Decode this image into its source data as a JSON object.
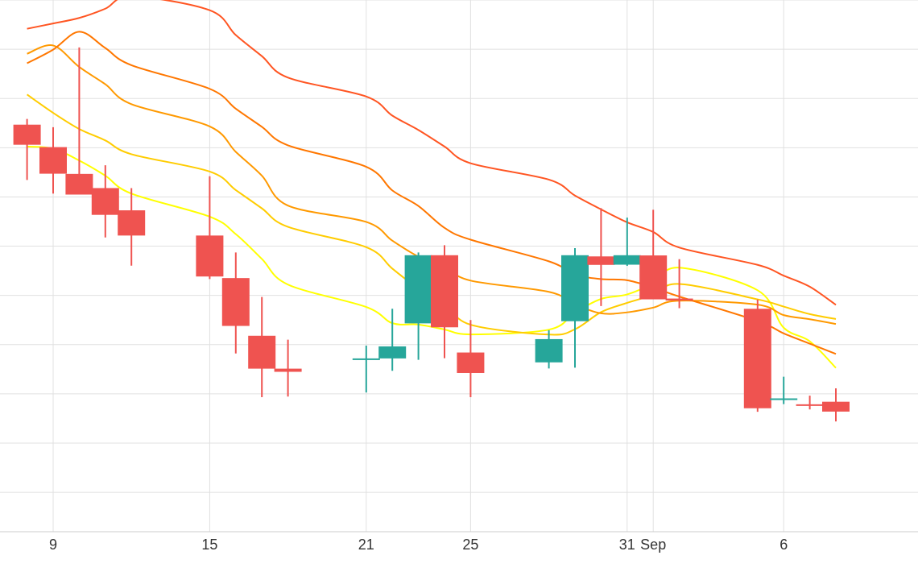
{
  "chart_data": {
    "type": "candlestick",
    "title": "",
    "xlabel": "",
    "ylabel": "",
    "x_ticks": [
      {
        "date": "Aug 9",
        "label": "9"
      },
      {
        "date": "Aug 15",
        "label": "15"
      },
      {
        "date": "Aug 21",
        "label": "21"
      },
      {
        "date": "Aug 25",
        "label": "25"
      },
      {
        "date": "Aug 31",
        "label": "31"
      },
      {
        "date": "Sep 1",
        "label": "Sep"
      },
      {
        "date": "Sep 6",
        "label": "6"
      }
    ],
    "y_axis": {
      "visible_labels": false
    },
    "candles": [
      {
        "date": "Aug 8",
        "open": 8.67,
        "high": 8.96,
        "low": 5.86,
        "close": 7.65
      },
      {
        "date": "Aug 9",
        "open": 7.53,
        "high": 8.54,
        "low": 5.17,
        "close": 6.18
      },
      {
        "date": "Aug 10",
        "open": 6.17,
        "high": 12.59,
        "low": 5.17,
        "close": 5.12
      },
      {
        "date": "Aug 11",
        "open": 5.45,
        "high": 6.61,
        "low": 2.94,
        "close": 4.09
      },
      {
        "date": "Aug 12",
        "open": 4.32,
        "high": 5.45,
        "low": 1.51,
        "close": 3.04
      },
      {
        "date": "Aug 15",
        "open": 3.04,
        "high": 6.05,
        "low": 0.83,
        "close": 0.96
      },
      {
        "date": "Aug 16",
        "open": 0.88,
        "high": 2.18,
        "low": -2.95,
        "close": -1.55
      },
      {
        "date": "Aug 17",
        "open": -2.05,
        "high": -0.08,
        "low": -5.17,
        "close": -3.72
      },
      {
        "date": "Aug 18",
        "open": -3.72,
        "high": -2.25,
        "low": -5.14,
        "close": -3.88
      },
      {
        "date": "Aug 21",
        "open": -3.2,
        "high": -2.55,
        "low": -4.93,
        "close": -3.2
      },
      {
        "date": "Aug 22",
        "open": -3.2,
        "high": -0.68,
        "low": -3.83,
        "close": -2.59
      },
      {
        "date": "Aug 23",
        "open": -1.42,
        "high": 2.18,
        "low": -3.27,
        "close": 2.04
      },
      {
        "date": "Aug 24",
        "open": 2.04,
        "high": 2.55,
        "low": -3.19,
        "close": -1.62
      },
      {
        "date": "Aug 25",
        "open": -2.9,
        "high": -1.25,
        "low": -5.17,
        "close": -3.94
      },
      {
        "date": "Aug 28",
        "open": -3.4,
        "high": -1.77,
        "low": -3.71,
        "close": -2.22
      },
      {
        "date": "Aug 29",
        "open": -1.31,
        "high": 2.4,
        "low": -3.67,
        "close": 2.04
      },
      {
        "date": "Aug 30",
        "open": 1.98,
        "high": 4.43,
        "low": -0.54,
        "close": 1.55
      },
      {
        "date": "Aug 31",
        "open": 1.56,
        "high": 3.95,
        "low": 1.5,
        "close": 2.04
      },
      {
        "date": "Sep 1",
        "open": 2.03,
        "high": 4.35,
        "low": -0.08,
        "close": -0.2
      },
      {
        "date": "Sep 2",
        "open": -0.16,
        "high": 1.84,
        "low": -0.65,
        "close": -0.26
      },
      {
        "date": "Sep 5",
        "open": -0.68,
        "high": -0.21,
        "low": -5.91,
        "close": -5.73
      },
      {
        "date": "Sep 6",
        "open": -5.23,
        "high": -4.13,
        "low": -5.52,
        "close": -5.23
      },
      {
        "date": "Sep 7",
        "open": -5.53,
        "high": -5.09,
        "low": -5.79,
        "close": -5.61
      },
      {
        "date": "Sep 8",
        "open": -5.4,
        "high": -4.72,
        "low": -6.4,
        "close": -5.9
      }
    ],
    "moving_averages": [
      {
        "color": "#ffff00",
        "values": [
          7.56,
          7.45,
          6.85,
          6.08,
          5.17,
          4.0,
          3.11,
          1.85,
          0.55,
          -0.59,
          -1.41,
          -1.48,
          -1.73,
          -1.98,
          -1.74,
          -0.87,
          -0.18,
          0.05,
          0.61,
          1.41,
          0.26,
          -1.64,
          -2.33,
          -3.68
        ]
      },
      {
        "color": "#ffcc00",
        "values": [
          10.2,
          9.27,
          8.45,
          7.87,
          7.17,
          6.29,
          5.35,
          4.42,
          3.48,
          2.45,
          1.36,
          0.35,
          -0.39,
          -1.49,
          -1.99,
          -1.72,
          -0.85,
          -0.38,
          0.03,
          0.58,
          -0.2,
          -0.57,
          -0.95,
          -1.2
        ]
      },
      {
        "color": "#ff9900",
        "values": [
          12.27,
          12.69,
          11.6,
          10.72,
          9.71,
          8.58,
          7.29,
          6.08,
          4.56,
          3.73,
          2.78,
          1.97,
          1.45,
          0.75,
          0.18,
          -0.45,
          -0.91,
          -0.86,
          -0.62,
          -0.27,
          -0.47,
          -1.0,
          -1.21,
          -1.45
        ]
      },
      {
        "color": "#ff7700",
        "values": [
          11.79,
          12.48,
          13.39,
          12.56,
          11.69,
          10.49,
          9.48,
          8.56,
          7.62,
          6.53,
          5.33,
          4.54,
          3.43,
          2.83,
          1.73,
          1.06,
          0.83,
          0.77,
          0.4,
          -0.06,
          -1.3,
          -1.93,
          -2.45,
          -2.97
        ]
      },
      {
        "color": "#ff5522",
        "values": [
          13.54,
          13.81,
          14.09,
          14.56,
          15.19,
          14.48,
          13.22,
          12.15,
          11.06,
          10.1,
          9.13,
          8.4,
          7.56,
          6.71,
          5.88,
          5.07,
          4.37,
          3.71,
          3.22,
          2.43,
          1.55,
          1.0,
          0.44,
          -0.48
        ]
      }
    ],
    "colors": {
      "up": "#26a69a",
      "down": "#ef5350",
      "grid": "#e0e0e0",
      "axis_line": "#cccccc"
    }
  }
}
